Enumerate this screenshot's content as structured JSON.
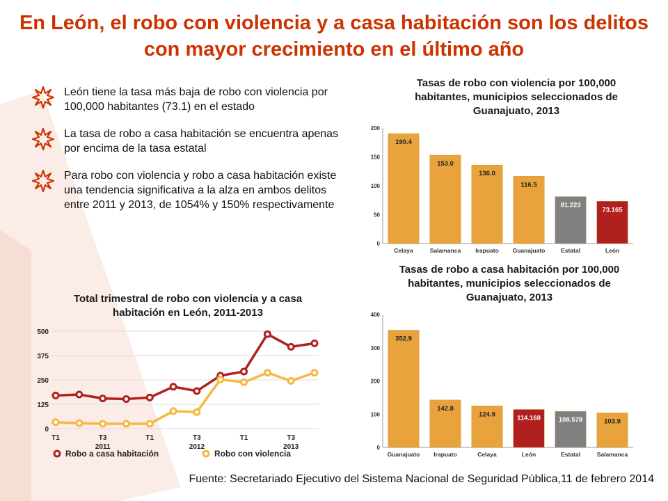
{
  "title": "En León, el robo con violencia y a casa habitación son los delitos con mayor crecimiento en el último año",
  "bullets": [
    "León tiene la tasa más baja de robo con violencia por 100,000 habitantes (73.1) en el estado",
    "La tasa de robo a casa habitación se encuentra apenas por encima de la tasa estatal",
    "Para robo con violencia y robo a casa habitación existe una tendencia significativa a la alza en ambos delitos entre 2011 y 2013, de 1054% y 150% respectivamente"
  ],
  "source": "Fuente: Secretariado Ejecutivo del Sistema Nacional de Seguridad Pública,11 de febrero 2014",
  "colors": {
    "title": "#cc3300",
    "orange": "#e8a33c",
    "gray": "#808080",
    "red": "#b0201e",
    "line_red": "#b0201e",
    "line_yellow": "#f5b942"
  },
  "chart_data": [
    {
      "type": "bar",
      "title": "Tasas de robo con violencia por 100,000 habitantes, municipios seleccionados de Guanajuato, 2013",
      "categories": [
        "Celaya",
        "Salamanca",
        "Irapuato",
        "Guanajuato",
        "Estatal",
        "León"
      ],
      "values": [
        190.4,
        153.0,
        136.0,
        116.5,
        81.223,
        73.165
      ],
      "labels": [
        "190.4",
        "153.0",
        "136.0",
        "116.5",
        "81.223",
        "73.165"
      ],
      "bar_colors": [
        "orange",
        "orange",
        "orange",
        "orange",
        "gray",
        "red"
      ],
      "ylim": [
        0,
        200
      ],
      "yticks": [
        0,
        50,
        100,
        150,
        200
      ]
    },
    {
      "type": "bar",
      "title": "Tasas de robo a casa habitación por 100,000 habitantes, municipios seleccionados de Guanajuato, 2013",
      "categories": [
        "Guanajuato",
        "Irapuato",
        "Celaya",
        "León",
        "Estatal",
        "Salamanca"
      ],
      "values": [
        352.9,
        142.8,
        124.9,
        114.168,
        108.578,
        103.9
      ],
      "labels": [
        "352.9",
        "142.8",
        "124.9",
        "114.168",
        "108.578",
        "103.9"
      ],
      "bar_colors": [
        "orange",
        "orange",
        "orange",
        "red",
        "gray",
        "orange"
      ],
      "ylim": [
        0,
        400
      ],
      "yticks": [
        0,
        100,
        200,
        300,
        400
      ]
    },
    {
      "type": "line",
      "title": "Total trimestral de robo con violencia y a casa habitación en León, 2011-2013",
      "x_tick_labels": [
        "T1",
        "",
        "T3",
        "",
        "T1",
        "",
        "T3",
        "",
        "T1",
        "",
        "T3",
        ""
      ],
      "years": [
        {
          "label": "2011",
          "at": 2
        },
        {
          "label": "2012",
          "at": 6
        },
        {
          "label": "2013",
          "at": 10
        }
      ],
      "ylim": [
        0,
        500
      ],
      "yticks": [
        0,
        125,
        250,
        375,
        500
      ],
      "series": [
        {
          "name": "Robo a casa habitación",
          "color": "line_red",
          "values": [
            170,
            175,
            155,
            152,
            160,
            215,
            193,
            272,
            293,
            485,
            420,
            438
          ]
        },
        {
          "name": "Robo con violencia",
          "color": "line_yellow",
          "values": [
            33,
            28,
            25,
            25,
            25,
            90,
            85,
            252,
            238,
            287,
            245,
            287
          ]
        }
      ]
    }
  ]
}
